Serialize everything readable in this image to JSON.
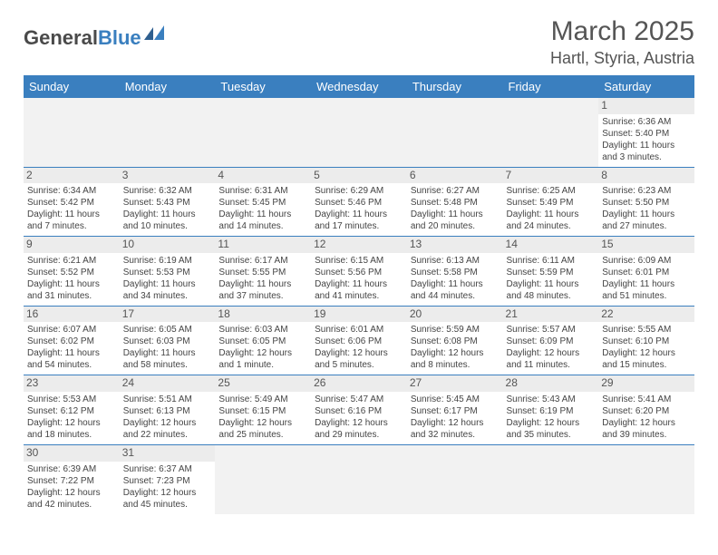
{
  "logo": {
    "part1": "General",
    "part2": "Blue"
  },
  "title": "March 2025",
  "location": "Hartl, Styria, Austria",
  "colors": {
    "header_bg": "#3a7fbf",
    "header_text": "#ffffff",
    "daynum_bg": "#ececec",
    "cell_border": "#3a7fbf",
    "empty_bg": "#f2f2f2",
    "body_text": "#444444"
  },
  "dayHeaders": [
    "Sunday",
    "Monday",
    "Tuesday",
    "Wednesday",
    "Thursday",
    "Friday",
    "Saturday"
  ],
  "weeks": [
    [
      {
        "empty": true
      },
      {
        "empty": true
      },
      {
        "empty": true
      },
      {
        "empty": true
      },
      {
        "empty": true
      },
      {
        "empty": true
      },
      {
        "n": "1",
        "sunrise": "Sunrise: 6:36 AM",
        "sunset": "Sunset: 5:40 PM",
        "day1": "Daylight: 11 hours",
        "day2": "and 3 minutes."
      }
    ],
    [
      {
        "n": "2",
        "sunrise": "Sunrise: 6:34 AM",
        "sunset": "Sunset: 5:42 PM",
        "day1": "Daylight: 11 hours",
        "day2": "and 7 minutes."
      },
      {
        "n": "3",
        "sunrise": "Sunrise: 6:32 AM",
        "sunset": "Sunset: 5:43 PM",
        "day1": "Daylight: 11 hours",
        "day2": "and 10 minutes."
      },
      {
        "n": "4",
        "sunrise": "Sunrise: 6:31 AM",
        "sunset": "Sunset: 5:45 PM",
        "day1": "Daylight: 11 hours",
        "day2": "and 14 minutes."
      },
      {
        "n": "5",
        "sunrise": "Sunrise: 6:29 AM",
        "sunset": "Sunset: 5:46 PM",
        "day1": "Daylight: 11 hours",
        "day2": "and 17 minutes."
      },
      {
        "n": "6",
        "sunrise": "Sunrise: 6:27 AM",
        "sunset": "Sunset: 5:48 PM",
        "day1": "Daylight: 11 hours",
        "day2": "and 20 minutes."
      },
      {
        "n": "7",
        "sunrise": "Sunrise: 6:25 AM",
        "sunset": "Sunset: 5:49 PM",
        "day1": "Daylight: 11 hours",
        "day2": "and 24 minutes."
      },
      {
        "n": "8",
        "sunrise": "Sunrise: 6:23 AM",
        "sunset": "Sunset: 5:50 PM",
        "day1": "Daylight: 11 hours",
        "day2": "and 27 minutes."
      }
    ],
    [
      {
        "n": "9",
        "sunrise": "Sunrise: 6:21 AM",
        "sunset": "Sunset: 5:52 PM",
        "day1": "Daylight: 11 hours",
        "day2": "and 31 minutes."
      },
      {
        "n": "10",
        "sunrise": "Sunrise: 6:19 AM",
        "sunset": "Sunset: 5:53 PM",
        "day1": "Daylight: 11 hours",
        "day2": "and 34 minutes."
      },
      {
        "n": "11",
        "sunrise": "Sunrise: 6:17 AM",
        "sunset": "Sunset: 5:55 PM",
        "day1": "Daylight: 11 hours",
        "day2": "and 37 minutes."
      },
      {
        "n": "12",
        "sunrise": "Sunrise: 6:15 AM",
        "sunset": "Sunset: 5:56 PM",
        "day1": "Daylight: 11 hours",
        "day2": "and 41 minutes."
      },
      {
        "n": "13",
        "sunrise": "Sunrise: 6:13 AM",
        "sunset": "Sunset: 5:58 PM",
        "day1": "Daylight: 11 hours",
        "day2": "and 44 minutes."
      },
      {
        "n": "14",
        "sunrise": "Sunrise: 6:11 AM",
        "sunset": "Sunset: 5:59 PM",
        "day1": "Daylight: 11 hours",
        "day2": "and 48 minutes."
      },
      {
        "n": "15",
        "sunrise": "Sunrise: 6:09 AM",
        "sunset": "Sunset: 6:01 PM",
        "day1": "Daylight: 11 hours",
        "day2": "and 51 minutes."
      }
    ],
    [
      {
        "n": "16",
        "sunrise": "Sunrise: 6:07 AM",
        "sunset": "Sunset: 6:02 PM",
        "day1": "Daylight: 11 hours",
        "day2": "and 54 minutes."
      },
      {
        "n": "17",
        "sunrise": "Sunrise: 6:05 AM",
        "sunset": "Sunset: 6:03 PM",
        "day1": "Daylight: 11 hours",
        "day2": "and 58 minutes."
      },
      {
        "n": "18",
        "sunrise": "Sunrise: 6:03 AM",
        "sunset": "Sunset: 6:05 PM",
        "day1": "Daylight: 12 hours",
        "day2": "and 1 minute."
      },
      {
        "n": "19",
        "sunrise": "Sunrise: 6:01 AM",
        "sunset": "Sunset: 6:06 PM",
        "day1": "Daylight: 12 hours",
        "day2": "and 5 minutes."
      },
      {
        "n": "20",
        "sunrise": "Sunrise: 5:59 AM",
        "sunset": "Sunset: 6:08 PM",
        "day1": "Daylight: 12 hours",
        "day2": "and 8 minutes."
      },
      {
        "n": "21",
        "sunrise": "Sunrise: 5:57 AM",
        "sunset": "Sunset: 6:09 PM",
        "day1": "Daylight: 12 hours",
        "day2": "and 11 minutes."
      },
      {
        "n": "22",
        "sunrise": "Sunrise: 5:55 AM",
        "sunset": "Sunset: 6:10 PM",
        "day1": "Daylight: 12 hours",
        "day2": "and 15 minutes."
      }
    ],
    [
      {
        "n": "23",
        "sunrise": "Sunrise: 5:53 AM",
        "sunset": "Sunset: 6:12 PM",
        "day1": "Daylight: 12 hours",
        "day2": "and 18 minutes."
      },
      {
        "n": "24",
        "sunrise": "Sunrise: 5:51 AM",
        "sunset": "Sunset: 6:13 PM",
        "day1": "Daylight: 12 hours",
        "day2": "and 22 minutes."
      },
      {
        "n": "25",
        "sunrise": "Sunrise: 5:49 AM",
        "sunset": "Sunset: 6:15 PM",
        "day1": "Daylight: 12 hours",
        "day2": "and 25 minutes."
      },
      {
        "n": "26",
        "sunrise": "Sunrise: 5:47 AM",
        "sunset": "Sunset: 6:16 PM",
        "day1": "Daylight: 12 hours",
        "day2": "and 29 minutes."
      },
      {
        "n": "27",
        "sunrise": "Sunrise: 5:45 AM",
        "sunset": "Sunset: 6:17 PM",
        "day1": "Daylight: 12 hours",
        "day2": "and 32 minutes."
      },
      {
        "n": "28",
        "sunrise": "Sunrise: 5:43 AM",
        "sunset": "Sunset: 6:19 PM",
        "day1": "Daylight: 12 hours",
        "day2": "and 35 minutes."
      },
      {
        "n": "29",
        "sunrise": "Sunrise: 5:41 AM",
        "sunset": "Sunset: 6:20 PM",
        "day1": "Daylight: 12 hours",
        "day2": "and 39 minutes."
      }
    ],
    [
      {
        "n": "30",
        "sunrise": "Sunrise: 6:39 AM",
        "sunset": "Sunset: 7:22 PM",
        "day1": "Daylight: 12 hours",
        "day2": "and 42 minutes."
      },
      {
        "n": "31",
        "sunrise": "Sunrise: 6:37 AM",
        "sunset": "Sunset: 7:23 PM",
        "day1": "Daylight: 12 hours",
        "day2": "and 45 minutes."
      },
      {
        "empty": true
      },
      {
        "empty": true
      },
      {
        "empty": true
      },
      {
        "empty": true
      },
      {
        "empty": true
      }
    ]
  ]
}
